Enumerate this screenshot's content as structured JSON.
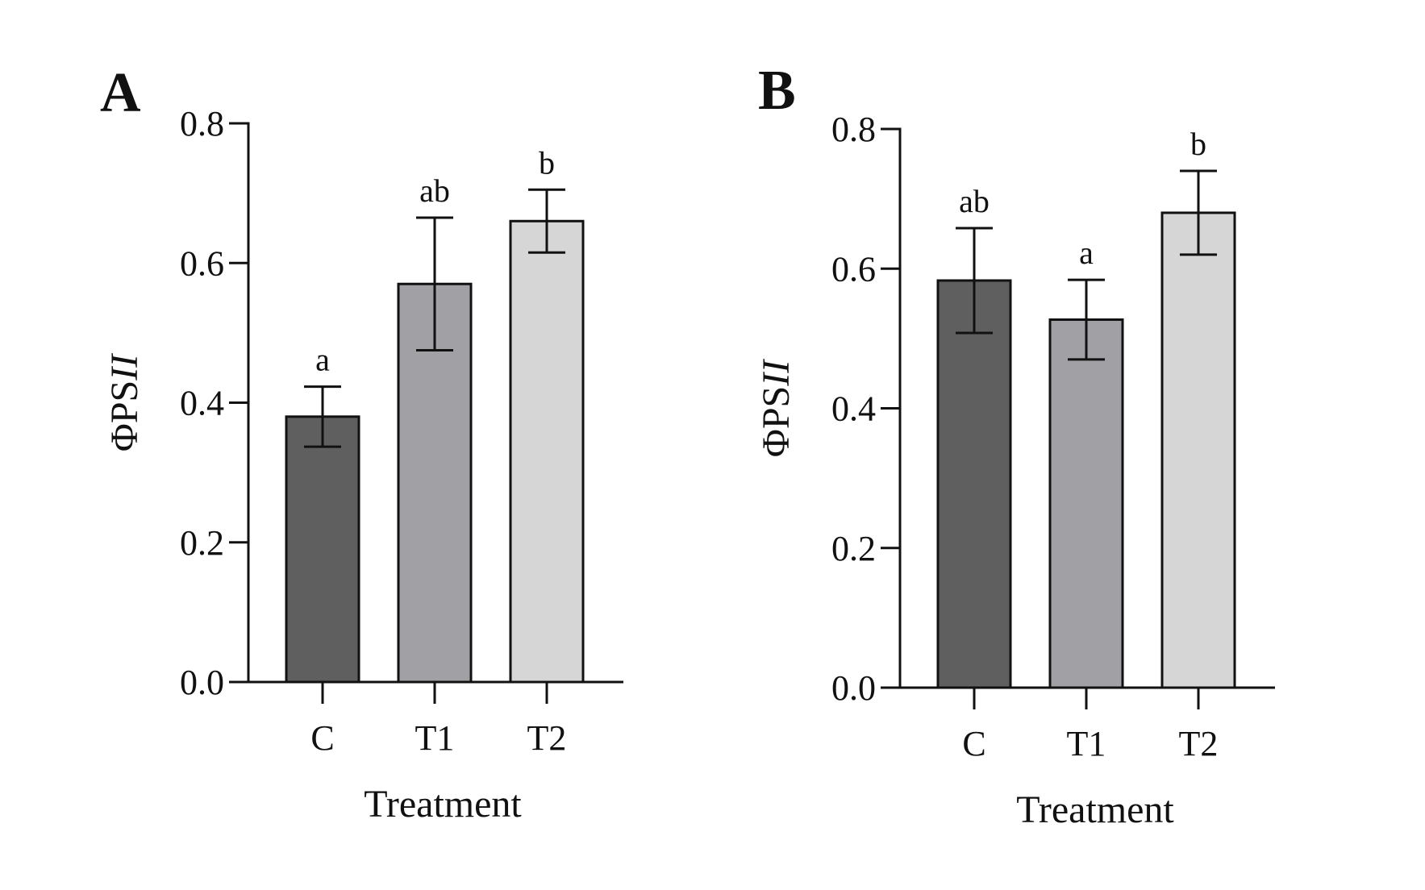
{
  "chart_data": [
    {
      "type": "bar",
      "panel": "A",
      "categories": [
        "C",
        "T1",
        "T2"
      ],
      "values": [
        0.38,
        0.57,
        0.66
      ],
      "errors": [
        0.043,
        0.095,
        0.045
      ],
      "significance": [
        "a",
        "ab",
        "b"
      ],
      "colors": [
        "#5f5f5f",
        "#a1a0a5",
        "#d6d6d6"
      ],
      "xlabel": "Treatment",
      "ylabel_main": "ΦPS",
      "ylabel_italic": "II",
      "ylim": [
        0,
        0.8
      ],
      "yticks": [
        "0.0",
        "0.2",
        "0.4",
        "0.6",
        "0.8"
      ],
      "ytick_values": [
        0,
        0.2,
        0.4,
        0.6,
        0.8
      ]
    },
    {
      "type": "bar",
      "panel": "B",
      "categories": [
        "C",
        "T1",
        "T2"
      ],
      "values": [
        0.583,
        0.527,
        0.68
      ],
      "errors": [
        0.075,
        0.057,
        0.06
      ],
      "significance": [
        "ab",
        "a",
        "b"
      ],
      "colors": [
        "#5f5f5f",
        "#a1a0a5",
        "#d6d6d6"
      ],
      "xlabel": "Treatment",
      "ylabel_main": "ΦPS",
      "ylabel_italic": "II",
      "ylim": [
        0,
        0.8
      ],
      "yticks": [
        "0.0",
        "0.2",
        "0.4",
        "0.6",
        "0.8"
      ],
      "ytick_values": [
        0,
        0.2,
        0.4,
        0.6,
        0.8
      ]
    }
  ]
}
